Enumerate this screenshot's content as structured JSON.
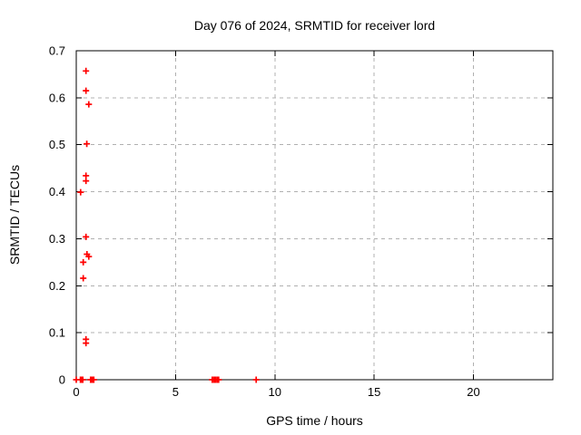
{
  "chart_data": {
    "type": "scatter",
    "title": "Day 076 of 2024, SRMTID for receiver lord",
    "xlabel": "GPS time / hours",
    "ylabel": "SRMTID / TECUs",
    "xlim": [
      0,
      24
    ],
    "ylim": [
      0,
      0.7
    ],
    "xticks": [
      0,
      5,
      10,
      15,
      20
    ],
    "xtick_labels": [
      "0",
      "5",
      "10",
      "15",
      "20"
    ],
    "yticks": [
      0,
      0.1,
      0.2,
      0.3,
      0.4,
      0.5,
      0.6,
      0.7
    ],
    "ytick_labels": [
      "0",
      "0.1",
      "0.2",
      "0.3",
      "0.4",
      "0.5",
      "0.6",
      "0.7"
    ],
    "grid": true,
    "legend": "none",
    "marker": "plus",
    "marker_color": "#ff0000",
    "grid_color": "#b0b0b0",
    "border_color": "#000000",
    "series": [
      {
        "name": "SRMTID",
        "points": [
          [
            0.49,
            0.657
          ],
          [
            0.49,
            0.615
          ],
          [
            0.63,
            0.586
          ],
          [
            0.53,
            0.502
          ],
          [
            0.49,
            0.434
          ],
          [
            0.49,
            0.423
          ],
          [
            0.22,
            0.399
          ],
          [
            0.49,
            0.304
          ],
          [
            0.54,
            0.267
          ],
          [
            0.63,
            0.262
          ],
          [
            0.35,
            0.25
          ],
          [
            0.35,
            0.216
          ],
          [
            0.49,
            0.086
          ],
          [
            0.49,
            0.078
          ],
          [
            0.0,
            0
          ],
          [
            0.21,
            0
          ],
          [
            0.24,
            0
          ],
          [
            0.27,
            0
          ],
          [
            0.3,
            0
          ],
          [
            0.33,
            0
          ],
          [
            0.72,
            0
          ],
          [
            0.76,
            0
          ],
          [
            0.8,
            0
          ],
          [
            0.84,
            0
          ],
          [
            0.88,
            0
          ],
          [
            6.85,
            0
          ],
          [
            6.93,
            0
          ],
          [
            7.01,
            0
          ],
          [
            7.09,
            0
          ],
          [
            7.17,
            0
          ],
          [
            9.06,
            0
          ]
        ]
      }
    ]
  }
}
